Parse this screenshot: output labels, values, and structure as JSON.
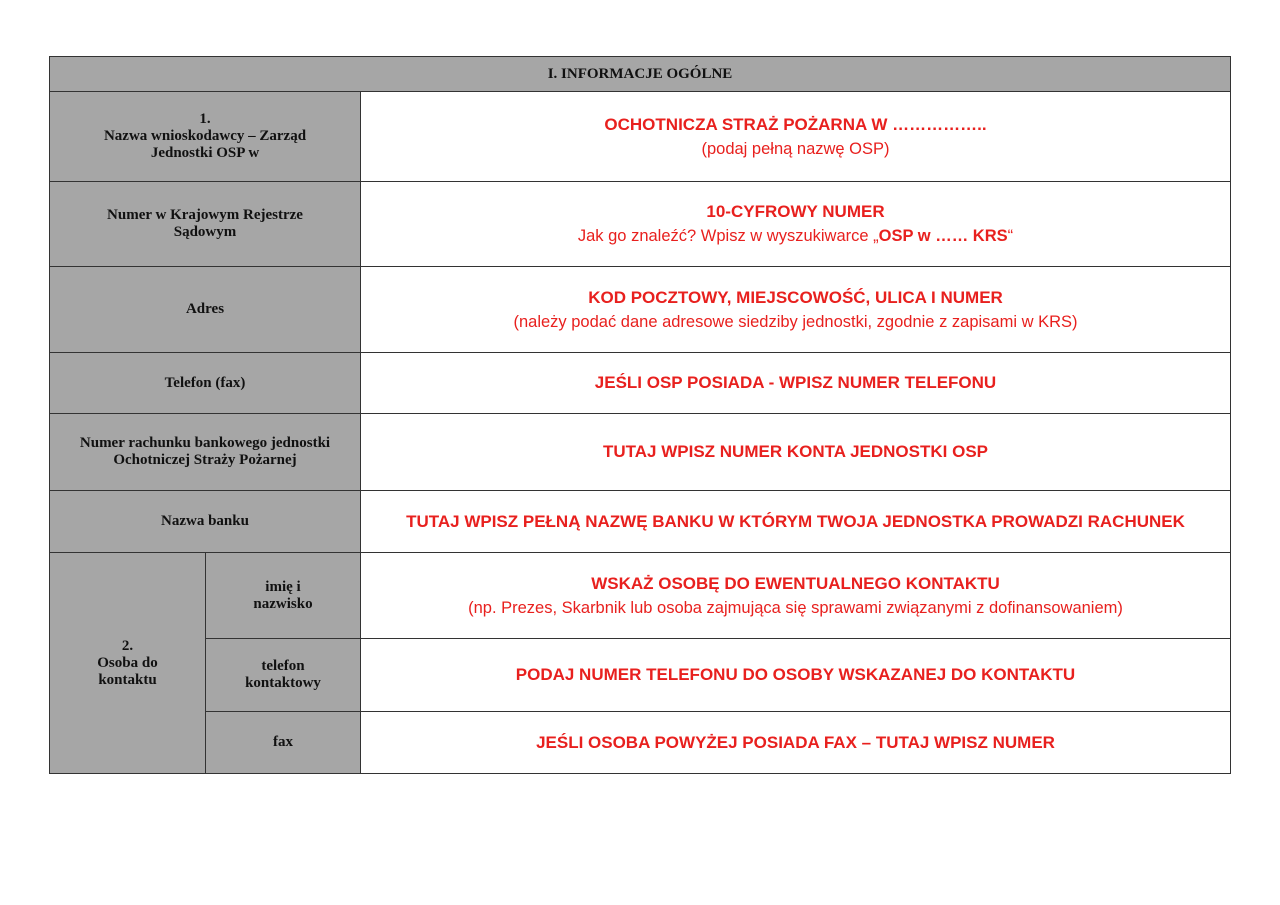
{
  "section_title": "I. INFORMACJE OGÓLNE",
  "rows": [
    {
      "label_num": "1.",
      "label": "Nazwa wnioskodawcy – Zarząd Jednostki OSP w",
      "main": "OCHOTNICZA STRAŻ POŻARNA W ……………..",
      "hint": "(podaj pełną nazwę OSP)"
    },
    {
      "label": "Numer w Krajowym Rejestrze Sądowym",
      "main": "10-CYFROWY NUMER",
      "hint_pre": "Jak go znaleźć? Wpisz w wyszukiwarce „",
      "hint_bold": "OSP w …… KRS",
      "hint_post": "“"
    },
    {
      "label": "Adres",
      "main": "KOD POCZTOWY, MIEJSCOWOŚĆ, ULICA I NUMER",
      "hint": "(należy podać dane adresowe siedziby jednostki, zgodnie z zapisami w KRS)"
    },
    {
      "label": "Telefon (fax)",
      "main": "JEŚLI OSP POSIADA - WPISZ NUMER TELEFONU"
    },
    {
      "label": "Numer rachunku bankowego jednostki Ochotniczej Straży Pożarnej",
      "main": "TUTAJ WPISZ NUMER KONTA JEDNOSTKI OSP"
    },
    {
      "label": "Nazwa banku",
      "main": "TUTAJ WPISZ PEŁNĄ NAZWĘ BANKU W KTÓRYM TWOJA JEDNOSTKA PROWADZI RACHUNEK"
    }
  ],
  "contact": {
    "label_num": "2.",
    "label": "Osoba do kontaktu",
    "rows": [
      {
        "label": "imię i nazwisko",
        "main": "WSKAŻ OSOBĘ DO EWENTUALNEGO KONTAKTU",
        "hint": "(np. Prezes, Skarbnik lub osoba zajmująca się sprawami związanymi z dofinansowaniem)"
      },
      {
        "label": "telefon kontaktowy",
        "main": "PODAJ NUMER TELEFONU DO OSOBY WSKAZANEJ DO KONTAKTU"
      },
      {
        "label": "fax",
        "main": "JEŚLI OSOBA POWYŻEJ POSIADA FAX – TUTAJ WPISZ NUMER"
      }
    ]
  },
  "colors": {
    "label_bg": "#a6a6a6",
    "value_text": "#e8201e"
  }
}
